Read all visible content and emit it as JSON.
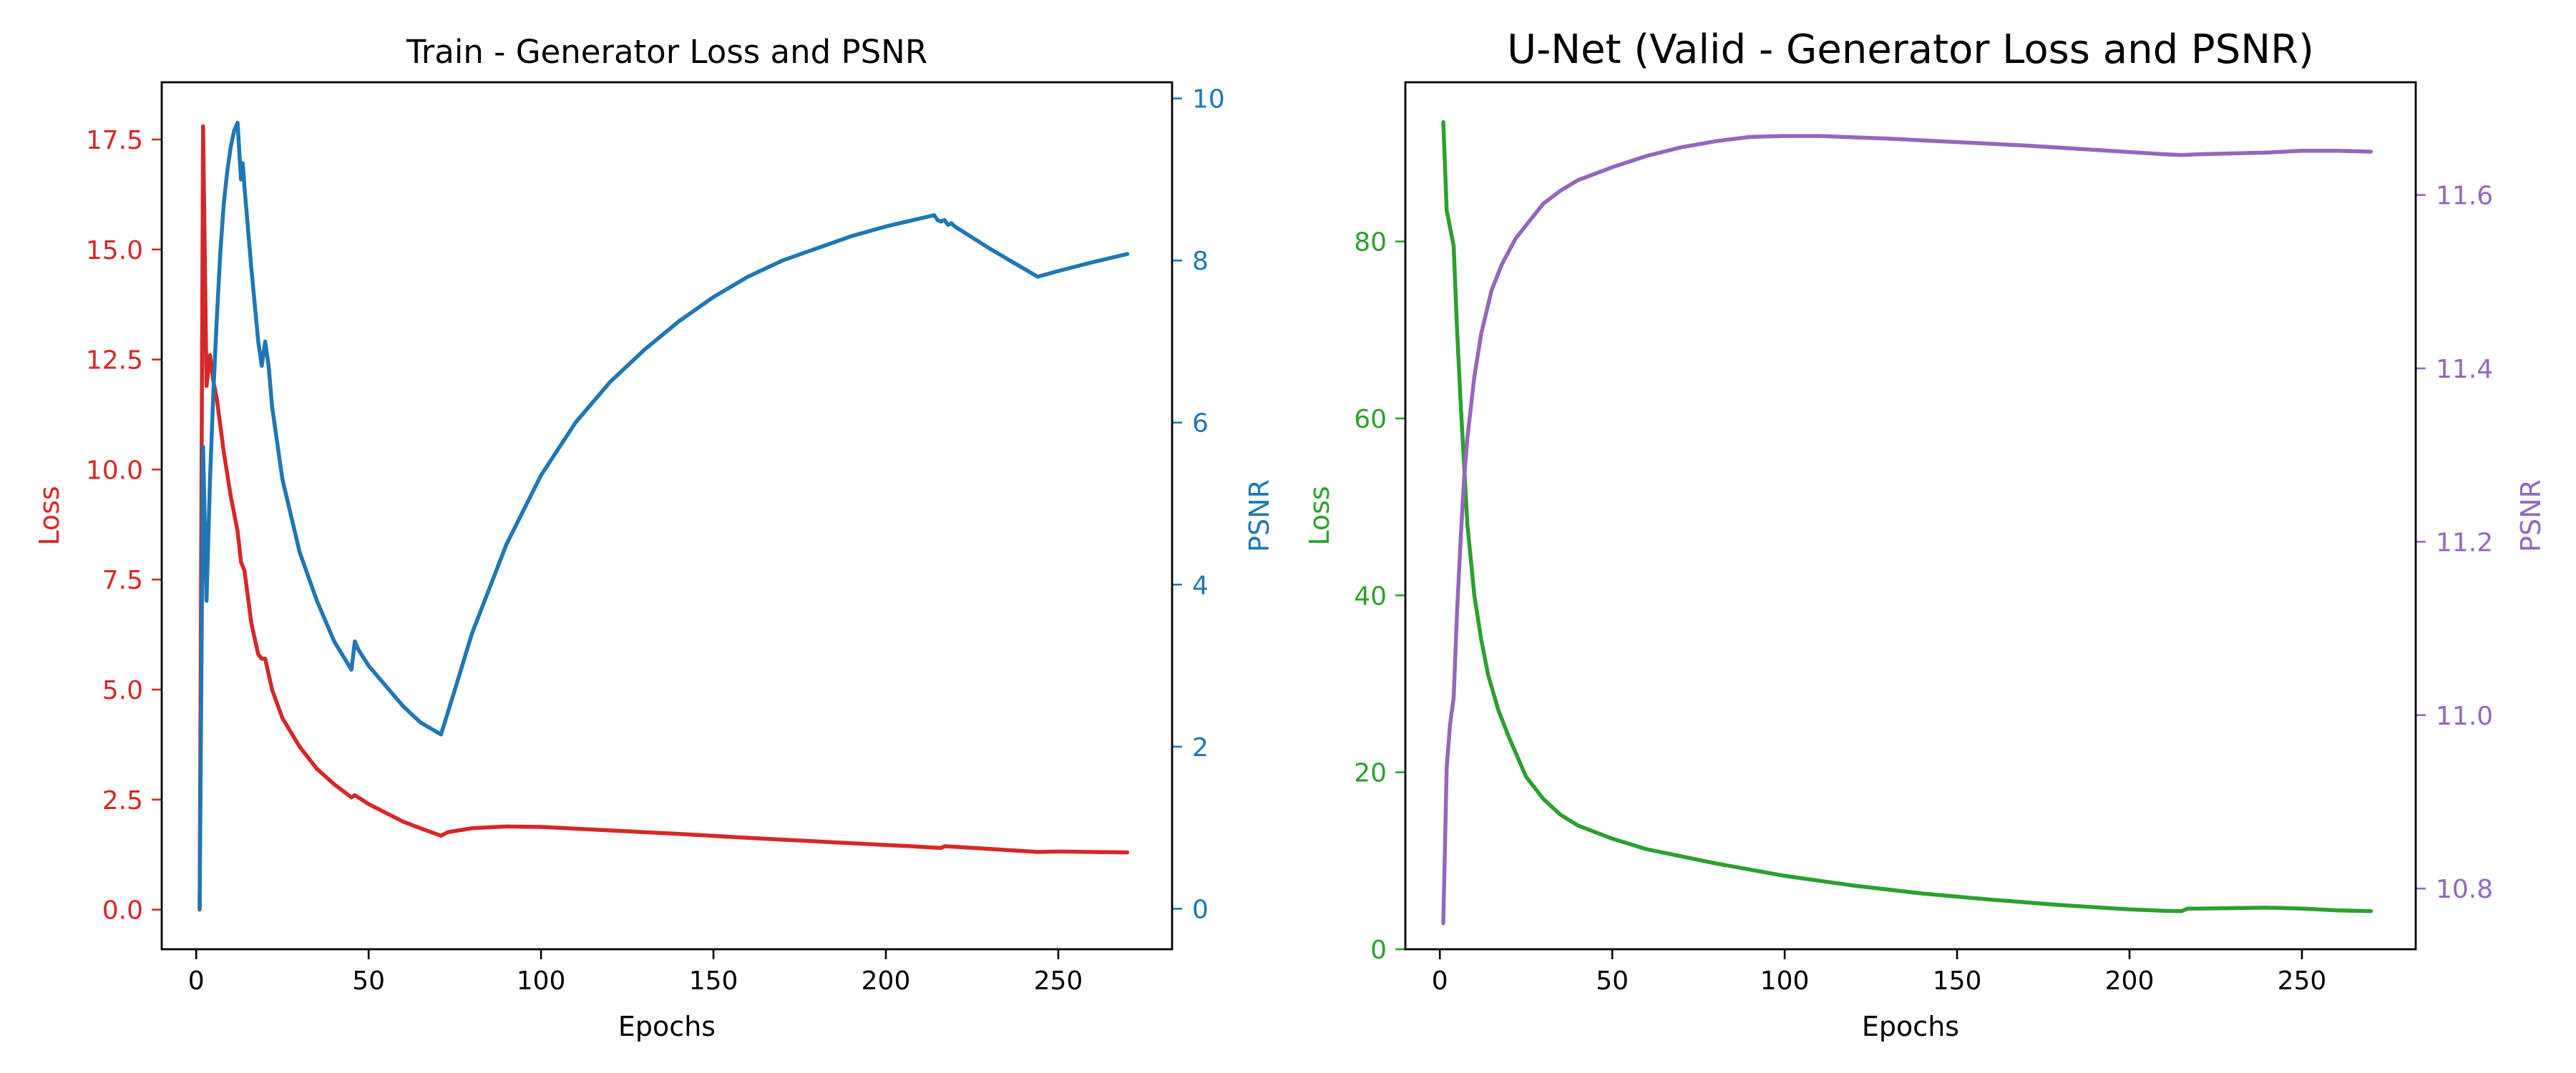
{
  "chart_data": [
    {
      "type": "line",
      "title": "Train - Generator Loss and PSNR",
      "xlabel": "Epochs",
      "ylabel": "Loss",
      "y2label": "PSNR",
      "xlim": [
        -10,
        283
      ],
      "ylim": [
        -0.9,
        18.8
      ],
      "y2lim": [
        -0.5,
        10.2
      ],
      "xticks": [
        0,
        50,
        100,
        150,
        200,
        250
      ],
      "yticks": [
        0.0,
        2.5,
        5.0,
        7.5,
        10.0,
        12.5,
        15.0,
        17.5
      ],
      "ytick_labels": [
        "0.0",
        "2.5",
        "5.0",
        "7.5",
        "10.0",
        "12.5",
        "15.0",
        "17.5"
      ],
      "y2ticks": [
        0,
        2,
        4,
        6,
        8,
        10
      ],
      "y2tick_labels": [
        "0",
        "2",
        "4",
        "6",
        "8",
        "10"
      ],
      "left_axis_color": "#d62728",
      "right_axis_color": "#1f77b4",
      "grid": false,
      "series": [
        {
          "axis": "left",
          "color": "#d62728",
          "points": [
            [
              1,
              0.0
            ],
            [
              2,
              17.8
            ],
            [
              3,
              11.9
            ],
            [
              4,
              12.6
            ],
            [
              5,
              12.0
            ],
            [
              6,
              11.6
            ],
            [
              8,
              10.4
            ],
            [
              10,
              9.4
            ],
            [
              12,
              8.6
            ],
            [
              13,
              7.9
            ],
            [
              14,
              7.7
            ],
            [
              16,
              6.5
            ],
            [
              18,
              5.8
            ],
            [
              19,
              5.7
            ],
            [
              20,
              5.7
            ],
            [
              22,
              5.0
            ],
            [
              25,
              4.35
            ],
            [
              30,
              3.7
            ],
            [
              35,
              3.2
            ],
            [
              40,
              2.85
            ],
            [
              45,
              2.55
            ],
            [
              46,
              2.6
            ],
            [
              47,
              2.55
            ],
            [
              50,
              2.4
            ],
            [
              55,
              2.2
            ],
            [
              60,
              2.0
            ],
            [
              65,
              1.85
            ],
            [
              71,
              1.68
            ],
            [
              73,
              1.76
            ],
            [
              80,
              1.85
            ],
            [
              90,
              1.89
            ],
            [
              100,
              1.88
            ],
            [
              120,
              1.8
            ],
            [
              140,
              1.72
            ],
            [
              160,
              1.63
            ],
            [
              180,
              1.55
            ],
            [
              200,
              1.47
            ],
            [
              210,
              1.43
            ],
            [
              216,
              1.4
            ],
            [
              217,
              1.44
            ],
            [
              220,
              1.43
            ],
            [
              230,
              1.38
            ],
            [
              240,
              1.33
            ],
            [
              244,
              1.31
            ],
            [
              250,
              1.32
            ],
            [
              260,
              1.31
            ],
            [
              270,
              1.3
            ]
          ]
        },
        {
          "axis": "right",
          "color": "#1f77b4",
          "points": [
            [
              1,
              0.0
            ],
            [
              2,
              5.7
            ],
            [
              3,
              3.8
            ],
            [
              4,
              5.3
            ],
            [
              5,
              6.4
            ],
            [
              6,
              7.3
            ],
            [
              7,
              8.1
            ],
            [
              8,
              8.7
            ],
            [
              9,
              9.1
            ],
            [
              10,
              9.4
            ],
            [
              11,
              9.6
            ],
            [
              12,
              9.7
            ],
            [
              13,
              9.0
            ],
            [
              13.5,
              9.2
            ],
            [
              14,
              8.9
            ],
            [
              16,
              7.9
            ],
            [
              18,
              7.0
            ],
            [
              19,
              6.7
            ],
            [
              20,
              7.0
            ],
            [
              21,
              6.7
            ],
            [
              22,
              6.2
            ],
            [
              25,
              5.3
            ],
            [
              30,
              4.4
            ],
            [
              35,
              3.8
            ],
            [
              40,
              3.3
            ],
            [
              45,
              2.95
            ],
            [
              46,
              3.3
            ],
            [
              47,
              3.2
            ],
            [
              50,
              3.0
            ],
            [
              55,
              2.75
            ],
            [
              60,
              2.5
            ],
            [
              65,
              2.3
            ],
            [
              71,
              2.15
            ],
            [
              75,
              2.7
            ],
            [
              80,
              3.4
            ],
            [
              90,
              4.5
            ],
            [
              100,
              5.35
            ],
            [
              110,
              6.0
            ],
            [
              120,
              6.5
            ],
            [
              130,
              6.9
            ],
            [
              140,
              7.25
            ],
            [
              150,
              7.55
            ],
            [
              160,
              7.8
            ],
            [
              170,
              8.0
            ],
            [
              180,
              8.15
            ],
            [
              190,
              8.3
            ],
            [
              200,
              8.42
            ],
            [
              210,
              8.52
            ],
            [
              214,
              8.56
            ],
            [
              215,
              8.5
            ],
            [
              216,
              8.48
            ],
            [
              217,
              8.5
            ],
            [
              218,
              8.44
            ],
            [
              219,
              8.46
            ],
            [
              220,
              8.42
            ],
            [
              230,
              8.15
            ],
            [
              240,
              7.9
            ],
            [
              244,
              7.8
            ],
            [
              250,
              7.87
            ],
            [
              260,
              7.98
            ],
            [
              270,
              8.08
            ]
          ]
        }
      ]
    },
    {
      "type": "line",
      "title": "U-Net (Valid - Generator Loss and PSNR)",
      "xlabel": "Epochs",
      "ylabel": "Loss",
      "y2label": "PSNR",
      "xlim": [
        -10,
        283
      ],
      "ylim": [
        0,
        98
      ],
      "y2lim": [
        10.73,
        11.73
      ],
      "xticks": [
        0,
        50,
        100,
        150,
        200,
        250
      ],
      "yticks": [
        0,
        20,
        40,
        60,
        80
      ],
      "ytick_labels": [
        "0",
        "20",
        "40",
        "60",
        "80"
      ],
      "y2ticks": [
        10.8,
        11.0,
        11.2,
        11.4,
        11.6
      ],
      "y2tick_labels": [
        "10.8",
        "11.0",
        "11.2",
        "11.4",
        "11.6"
      ],
      "left_axis_color": "#2ca02c",
      "right_axis_color": "#9467bd",
      "grid": false,
      "series": [
        {
          "axis": "left",
          "color": "#2ca02c",
          "points": [
            [
              1,
              93.5
            ],
            [
              2,
              83.5
            ],
            [
              4,
              79.5
            ],
            [
              5,
              70
            ],
            [
              6,
              62
            ],
            [
              7,
              55
            ],
            [
              8,
              48
            ],
            [
              10,
              40
            ],
            [
              12,
              35
            ],
            [
              14,
              31
            ],
            [
              17,
              27
            ],
            [
              20,
              24
            ],
            [
              25,
              19.5
            ],
            [
              30,
              17
            ],
            [
              35,
              15.2
            ],
            [
              40,
              14
            ],
            [
              50,
              12.5
            ],
            [
              60,
              11.3
            ],
            [
              70,
              10.5
            ],
            [
              80,
              9.7
            ],
            [
              90,
              9
            ],
            [
              100,
              8.3
            ],
            [
              120,
              7.2
            ],
            [
              140,
              6.3
            ],
            [
              160,
              5.6
            ],
            [
              180,
              5.0
            ],
            [
              200,
              4.5
            ],
            [
              210,
              4.35
            ],
            [
              215,
              4.3
            ],
            [
              217,
              4.6
            ],
            [
              220,
              4.6
            ],
            [
              240,
              4.7
            ],
            [
              250,
              4.6
            ],
            [
              260,
              4.4
            ],
            [
              270,
              4.3
            ]
          ]
        },
        {
          "axis": "right",
          "color": "#9467bd",
          "points": [
            [
              1,
              10.76
            ],
            [
              2,
              10.94
            ],
            [
              3,
              10.99
            ],
            [
              4,
              11.02
            ],
            [
              5,
              11.12
            ],
            [
              6,
              11.2
            ],
            [
              7,
              11.27
            ],
            [
              8,
              11.32
            ],
            [
              10,
              11.39
            ],
            [
              12,
              11.44
            ],
            [
              15,
              11.49
            ],
            [
              18,
              11.52
            ],
            [
              22,
              11.55
            ],
            [
              26,
              11.57
            ],
            [
              30,
              11.59
            ],
            [
              35,
              11.605
            ],
            [
              40,
              11.617
            ],
            [
              50,
              11.632
            ],
            [
              60,
              11.645
            ],
            [
              70,
              11.655
            ],
            [
              80,
              11.662
            ],
            [
              90,
              11.667
            ],
            [
              100,
              11.668
            ],
            [
              110,
              11.668
            ],
            [
              130,
              11.665
            ],
            [
              150,
              11.661
            ],
            [
              170,
              11.657
            ],
            [
              190,
              11.652
            ],
            [
              210,
              11.647
            ],
            [
              215,
              11.646
            ],
            [
              220,
              11.647
            ],
            [
              240,
              11.649
            ],
            [
              250,
              11.651
            ],
            [
              260,
              11.651
            ],
            [
              270,
              11.65
            ]
          ]
        }
      ]
    }
  ]
}
